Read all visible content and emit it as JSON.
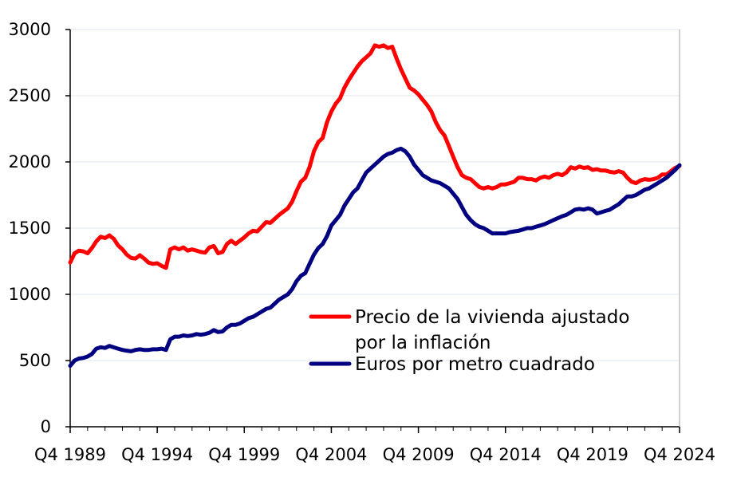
{
  "chart_data": {
    "type": "line",
    "x_tick_labels": [
      "Q4 1989",
      "Q4 1994",
      "Q4 1999",
      "Q4 2004",
      "Q4 2009",
      "Q4 2014",
      "Q4 2019",
      "Q4 2024"
    ],
    "x_range": [
      1989.75,
      2024.75
    ],
    "y_ticks": [
      0,
      500,
      1000,
      1500,
      2000,
      2500,
      3000
    ],
    "ylim": [
      0,
      3000
    ],
    "grid": "horizontal",
    "legend_placement": "center-right",
    "series": [
      {
        "name": "Precio de la vivienda ajustado por la inflación",
        "legend_lines": [
          "Precio de la vivienda ajustado",
          "por la inflación"
        ],
        "color": "#ff0000",
        "points": [
          [
            1989.75,
            1240
          ],
          [
            1990.0,
            1310
          ],
          [
            1990.25,
            1330
          ],
          [
            1990.5,
            1325
          ],
          [
            1990.75,
            1310
          ],
          [
            1991.0,
            1350
          ],
          [
            1991.25,
            1400
          ],
          [
            1991.5,
            1435
          ],
          [
            1991.75,
            1425
          ],
          [
            1992.0,
            1445
          ],
          [
            1992.25,
            1420
          ],
          [
            1992.5,
            1370
          ],
          [
            1992.75,
            1340
          ],
          [
            1993.0,
            1300
          ],
          [
            1993.25,
            1275
          ],
          [
            1993.5,
            1270
          ],
          [
            1993.75,
            1295
          ],
          [
            1994.0,
            1270
          ],
          [
            1994.25,
            1240
          ],
          [
            1994.5,
            1230
          ],
          [
            1994.75,
            1235
          ],
          [
            1995.0,
            1215
          ],
          [
            1995.25,
            1200
          ],
          [
            1995.5,
            1340
          ],
          [
            1995.75,
            1355
          ],
          [
            1996.0,
            1340
          ],
          [
            1996.25,
            1355
          ],
          [
            1996.5,
            1330
          ],
          [
            1996.75,
            1340
          ],
          [
            1997.0,
            1330
          ],
          [
            1997.25,
            1320
          ],
          [
            1997.5,
            1315
          ],
          [
            1997.75,
            1355
          ],
          [
            1998.0,
            1365
          ],
          [
            1998.25,
            1310
          ],
          [
            1998.5,
            1320
          ],
          [
            1998.75,
            1380
          ],
          [
            1999.0,
            1405
          ],
          [
            1999.25,
            1380
          ],
          [
            1999.5,
            1405
          ],
          [
            1999.75,
            1430
          ],
          [
            2000.0,
            1460
          ],
          [
            2000.25,
            1480
          ],
          [
            2000.5,
            1475
          ],
          [
            2000.75,
            1510
          ],
          [
            2001.0,
            1545
          ],
          [
            2001.25,
            1540
          ],
          [
            2001.5,
            1570
          ],
          [
            2001.75,
            1600
          ],
          [
            2002.0,
            1625
          ],
          [
            2002.25,
            1650
          ],
          [
            2002.5,
            1700
          ],
          [
            2002.75,
            1780
          ],
          [
            2003.0,
            1850
          ],
          [
            2003.25,
            1880
          ],
          [
            2003.5,
            1960
          ],
          [
            2003.75,
            2080
          ],
          [
            2004.0,
            2150
          ],
          [
            2004.25,
            2180
          ],
          [
            2004.5,
            2300
          ],
          [
            2004.75,
            2380
          ],
          [
            2005.0,
            2440
          ],
          [
            2005.25,
            2480
          ],
          [
            2005.5,
            2560
          ],
          [
            2005.75,
            2620
          ],
          [
            2006.0,
            2670
          ],
          [
            2006.25,
            2720
          ],
          [
            2006.5,
            2760
          ],
          [
            2006.75,
            2790
          ],
          [
            2007.0,
            2820
          ],
          [
            2007.25,
            2880
          ],
          [
            2007.5,
            2870
          ],
          [
            2007.75,
            2880
          ],
          [
            2008.0,
            2860
          ],
          [
            2008.25,
            2870
          ],
          [
            2008.5,
            2780
          ],
          [
            2008.75,
            2700
          ],
          [
            2009.0,
            2630
          ],
          [
            2009.25,
            2560
          ],
          [
            2009.5,
            2540
          ],
          [
            2009.75,
            2510
          ],
          [
            2010.0,
            2470
          ],
          [
            2010.25,
            2430
          ],
          [
            2010.5,
            2380
          ],
          [
            2010.75,
            2300
          ],
          [
            2011.0,
            2240
          ],
          [
            2011.25,
            2200
          ],
          [
            2011.5,
            2120
          ],
          [
            2011.75,
            2040
          ],
          [
            2012.0,
            1960
          ],
          [
            2012.25,
            1900
          ],
          [
            2012.5,
            1880
          ],
          [
            2012.75,
            1870
          ],
          [
            2013.0,
            1840
          ],
          [
            2013.25,
            1810
          ],
          [
            2013.5,
            1800
          ],
          [
            2013.75,
            1810
          ],
          [
            2014.0,
            1800
          ],
          [
            2014.25,
            1810
          ],
          [
            2014.5,
            1830
          ],
          [
            2014.75,
            1830
          ],
          [
            2015.0,
            1840
          ],
          [
            2015.25,
            1850
          ],
          [
            2015.5,
            1880
          ],
          [
            2015.75,
            1880
          ],
          [
            2016.0,
            1870
          ],
          [
            2016.25,
            1870
          ],
          [
            2016.5,
            1860
          ],
          [
            2016.75,
            1880
          ],
          [
            2017.0,
            1890
          ],
          [
            2017.25,
            1880
          ],
          [
            2017.5,
            1900
          ],
          [
            2017.75,
            1910
          ],
          [
            2018.0,
            1900
          ],
          [
            2018.25,
            1920
          ],
          [
            2018.5,
            1960
          ],
          [
            2018.75,
            1950
          ],
          [
            2019.0,
            1965
          ],
          [
            2019.25,
            1955
          ],
          [
            2019.5,
            1960
          ],
          [
            2019.75,
            1940
          ],
          [
            2020.0,
            1945
          ],
          [
            2020.25,
            1935
          ],
          [
            2020.5,
            1935
          ],
          [
            2020.75,
            1925
          ],
          [
            2021.0,
            1920
          ],
          [
            2021.25,
            1930
          ],
          [
            2021.5,
            1920
          ],
          [
            2021.75,
            1880
          ],
          [
            2022.0,
            1850
          ],
          [
            2022.25,
            1840
          ],
          [
            2022.5,
            1860
          ],
          [
            2022.75,
            1870
          ],
          [
            2023.0,
            1865
          ],
          [
            2023.25,
            1870
          ],
          [
            2023.5,
            1880
          ],
          [
            2023.75,
            1905
          ],
          [
            2024.0,
            1905
          ],
          [
            2024.25,
            1930
          ],
          [
            2024.5,
            1955
          ],
          [
            2024.75,
            1970
          ]
        ]
      },
      {
        "name": "Euros por metro cuadrado",
        "legend_lines": [
          "Euros por metro cuadrado"
        ],
        "color": "#000080",
        "points": [
          [
            1989.75,
            460
          ],
          [
            1990.0,
            500
          ],
          [
            1990.25,
            515
          ],
          [
            1990.5,
            520
          ],
          [
            1990.75,
            530
          ],
          [
            1991.0,
            550
          ],
          [
            1991.25,
            590
          ],
          [
            1991.5,
            600
          ],
          [
            1991.75,
            595
          ],
          [
            1992.0,
            610
          ],
          [
            1992.25,
            600
          ],
          [
            1992.5,
            590
          ],
          [
            1992.75,
            580
          ],
          [
            1993.0,
            575
          ],
          [
            1993.25,
            570
          ],
          [
            1993.5,
            580
          ],
          [
            1993.75,
            585
          ],
          [
            1994.0,
            580
          ],
          [
            1994.25,
            580
          ],
          [
            1994.5,
            585
          ],
          [
            1994.75,
            585
          ],
          [
            1995.0,
            590
          ],
          [
            1995.25,
            580
          ],
          [
            1995.5,
            660
          ],
          [
            1995.75,
            680
          ],
          [
            1996.0,
            680
          ],
          [
            1996.25,
            690
          ],
          [
            1996.5,
            685
          ],
          [
            1996.75,
            690
          ],
          [
            1997.0,
            700
          ],
          [
            1997.25,
            695
          ],
          [
            1997.5,
            700
          ],
          [
            1997.75,
            710
          ],
          [
            1998.0,
            730
          ],
          [
            1998.25,
            715
          ],
          [
            1998.5,
            720
          ],
          [
            1998.75,
            750
          ],
          [
            1999.0,
            770
          ],
          [
            1999.25,
            770
          ],
          [
            1999.5,
            780
          ],
          [
            1999.75,
            800
          ],
          [
            2000.0,
            820
          ],
          [
            2000.25,
            830
          ],
          [
            2000.5,
            850
          ],
          [
            2000.75,
            870
          ],
          [
            2001.0,
            890
          ],
          [
            2001.25,
            900
          ],
          [
            2001.5,
            930
          ],
          [
            2001.75,
            960
          ],
          [
            2002.0,
            980
          ],
          [
            2002.25,
            1000
          ],
          [
            2002.5,
            1040
          ],
          [
            2002.75,
            1100
          ],
          [
            2003.0,
            1140
          ],
          [
            2003.25,
            1160
          ],
          [
            2003.5,
            1230
          ],
          [
            2003.75,
            1300
          ],
          [
            2004.0,
            1350
          ],
          [
            2004.25,
            1380
          ],
          [
            2004.5,
            1440
          ],
          [
            2004.75,
            1520
          ],
          [
            2005.0,
            1560
          ],
          [
            2005.25,
            1600
          ],
          [
            2005.5,
            1670
          ],
          [
            2005.75,
            1720
          ],
          [
            2006.0,
            1770
          ],
          [
            2006.25,
            1800
          ],
          [
            2006.5,
            1860
          ],
          [
            2006.75,
            1920
          ],
          [
            2007.0,
            1950
          ],
          [
            2007.25,
            1980
          ],
          [
            2007.5,
            2010
          ],
          [
            2007.75,
            2040
          ],
          [
            2008.0,
            2060
          ],
          [
            2008.25,
            2070
          ],
          [
            2008.5,
            2090
          ],
          [
            2008.75,
            2100
          ],
          [
            2009.0,
            2080
          ],
          [
            2009.25,
            2040
          ],
          [
            2009.5,
            1980
          ],
          [
            2009.75,
            1940
          ],
          [
            2010.0,
            1900
          ],
          [
            2010.25,
            1880
          ],
          [
            2010.5,
            1860
          ],
          [
            2010.75,
            1850
          ],
          [
            2011.0,
            1840
          ],
          [
            2011.25,
            1820
          ],
          [
            2011.5,
            1800
          ],
          [
            2011.75,
            1760
          ],
          [
            2012.0,
            1720
          ],
          [
            2012.25,
            1660
          ],
          [
            2012.5,
            1600
          ],
          [
            2012.75,
            1560
          ],
          [
            2013.0,
            1530
          ],
          [
            2013.25,
            1510
          ],
          [
            2013.5,
            1500
          ],
          [
            2013.75,
            1480
          ],
          [
            2014.0,
            1460
          ],
          [
            2014.25,
            1460
          ],
          [
            2014.5,
            1460
          ],
          [
            2014.75,
            1460
          ],
          [
            2015.0,
            1470
          ],
          [
            2015.25,
            1475
          ],
          [
            2015.5,
            1480
          ],
          [
            2015.75,
            1490
          ],
          [
            2016.0,
            1500
          ],
          [
            2016.25,
            1500
          ],
          [
            2016.5,
            1510
          ],
          [
            2016.75,
            1520
          ],
          [
            2017.0,
            1530
          ],
          [
            2017.25,
            1545
          ],
          [
            2017.5,
            1560
          ],
          [
            2017.75,
            1575
          ],
          [
            2018.0,
            1590
          ],
          [
            2018.25,
            1600
          ],
          [
            2018.5,
            1620
          ],
          [
            2018.75,
            1640
          ],
          [
            2019.0,
            1645
          ],
          [
            2019.25,
            1640
          ],
          [
            2019.5,
            1650
          ],
          [
            2019.75,
            1640
          ],
          [
            2020.0,
            1610
          ],
          [
            2020.25,
            1620
          ],
          [
            2020.5,
            1630
          ],
          [
            2020.75,
            1640
          ],
          [
            2021.0,
            1660
          ],
          [
            2021.25,
            1680
          ],
          [
            2021.5,
            1710
          ],
          [
            2021.75,
            1740
          ],
          [
            2022.0,
            1740
          ],
          [
            2022.25,
            1750
          ],
          [
            2022.5,
            1770
          ],
          [
            2022.75,
            1790
          ],
          [
            2023.0,
            1800
          ],
          [
            2023.25,
            1820
          ],
          [
            2023.5,
            1840
          ],
          [
            2023.75,
            1860
          ],
          [
            2024.0,
            1880
          ],
          [
            2024.25,
            1910
          ],
          [
            2024.5,
            1940
          ],
          [
            2024.75,
            1975
          ]
        ]
      }
    ]
  }
}
